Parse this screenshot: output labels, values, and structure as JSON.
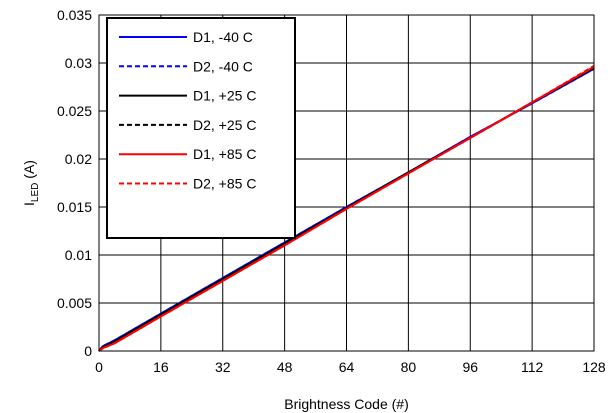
{
  "chart_data": {
    "type": "line",
    "xlabel": "Brightness Code (#)",
    "ylabel": "I",
    "ylabel_sub": "LED",
    "ylabel_unit": " (A)",
    "xlim": [
      0,
      128
    ],
    "ylim": [
      0,
      0.035
    ],
    "x_ticks": [
      0,
      16,
      32,
      48,
      64,
      80,
      96,
      112,
      128
    ],
    "x_tick_labels": [
      "0",
      "16",
      "32",
      "48",
      "64",
      "80",
      "96",
      "112",
      "128"
    ],
    "y_ticks": [
      0,
      0.005,
      0.01,
      0.015,
      0.02,
      0.025,
      0.03,
      0.035
    ],
    "y_tick_labels": [
      "0",
      "0.005",
      "0.01",
      "0.015",
      "0.02",
      "0.025",
      "0.03",
      "0.035"
    ],
    "grid": true,
    "legend_position": "top-left",
    "series": [
      {
        "name": "D1, -40 C",
        "color": "#0000ff",
        "dash": "solid",
        "x": [
          0,
          1,
          4,
          16,
          32,
          48,
          64,
          80,
          96,
          112,
          128
        ],
        "y": [
          0,
          0.0005,
          0.0011,
          0.0039,
          0.0076,
          0.0113,
          0.015,
          0.0186,
          0.0223,
          0.0258,
          0.0294
        ]
      },
      {
        "name": "D2, -40 C",
        "color": "#0000ff",
        "dash": "dashed",
        "x": [
          0,
          1,
          4,
          16,
          32,
          48,
          64,
          80,
          96,
          112,
          128
        ],
        "y": [
          0,
          0.0005,
          0.0011,
          0.0039,
          0.0076,
          0.0113,
          0.015,
          0.0186,
          0.0223,
          0.0258,
          0.0294
        ]
      },
      {
        "name": "D1, +25 C",
        "color": "#000000",
        "dash": "solid",
        "x": [
          0,
          1,
          4,
          16,
          32,
          48,
          64,
          80,
          96,
          112,
          128
        ],
        "y": [
          0,
          0.0004,
          0.001,
          0.0038,
          0.0075,
          0.0112,
          0.0149,
          0.0186,
          0.0222,
          0.0259,
          0.0295
        ]
      },
      {
        "name": "D2, +25 C",
        "color": "#000000",
        "dash": "dashed",
        "x": [
          0,
          1,
          4,
          16,
          32,
          48,
          64,
          80,
          96,
          112,
          128
        ],
        "y": [
          0,
          0.0004,
          0.001,
          0.0038,
          0.0075,
          0.0112,
          0.0149,
          0.0186,
          0.0222,
          0.0259,
          0.0295
        ]
      },
      {
        "name": "D1, +85 C",
        "color": "#ff0000",
        "dash": "solid",
        "x": [
          0,
          1,
          4,
          16,
          32,
          48,
          64,
          80,
          96,
          112,
          128
        ],
        "y": [
          0,
          0.0003,
          0.0008,
          0.0036,
          0.0073,
          0.011,
          0.0148,
          0.0185,
          0.0222,
          0.0259,
          0.0296
        ]
      },
      {
        "name": "D2, +85 C",
        "color": "#ff0000",
        "dash": "dashed",
        "x": [
          0,
          1,
          4,
          16,
          32,
          48,
          64,
          80,
          96,
          112,
          128
        ],
        "y": [
          0,
          0.0003,
          0.0008,
          0.0036,
          0.0073,
          0.011,
          0.0148,
          0.0185,
          0.0222,
          0.0259,
          0.0297
        ]
      }
    ]
  }
}
